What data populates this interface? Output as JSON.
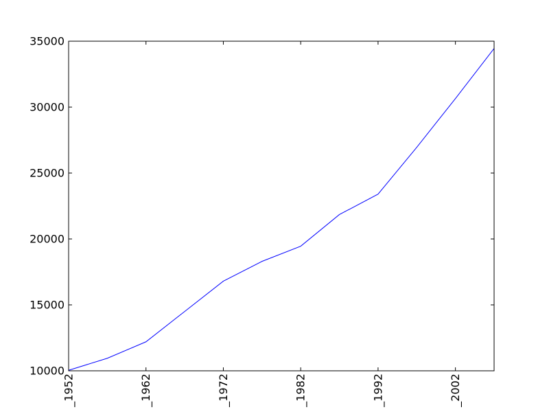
{
  "chart_data": {
    "type": "line",
    "x_tick_labels": [
      "_1952",
      "_1962",
      "_1972",
      "_1982",
      "_1992",
      "_2002"
    ],
    "y_tick_labels": [
      "10000",
      "15000",
      "20000",
      "25000",
      "30000",
      "35000"
    ],
    "x": [
      1952,
      1957,
      1962,
      1967,
      1972,
      1977,
      1982,
      1987,
      1992,
      1997,
      2002,
      2007
    ],
    "series": [
      {
        "values": [
          10039,
          10950,
          12200,
          14500,
          16800,
          18300,
          19450,
          21850,
          23400,
          26950,
          30650,
          34450
        ]
      }
    ],
    "xlim": [
      1952,
      2007
    ],
    "ylim": [
      10000,
      35000
    ],
    "line_color": "#0000ff",
    "grid": false,
    "legend": false
  }
}
